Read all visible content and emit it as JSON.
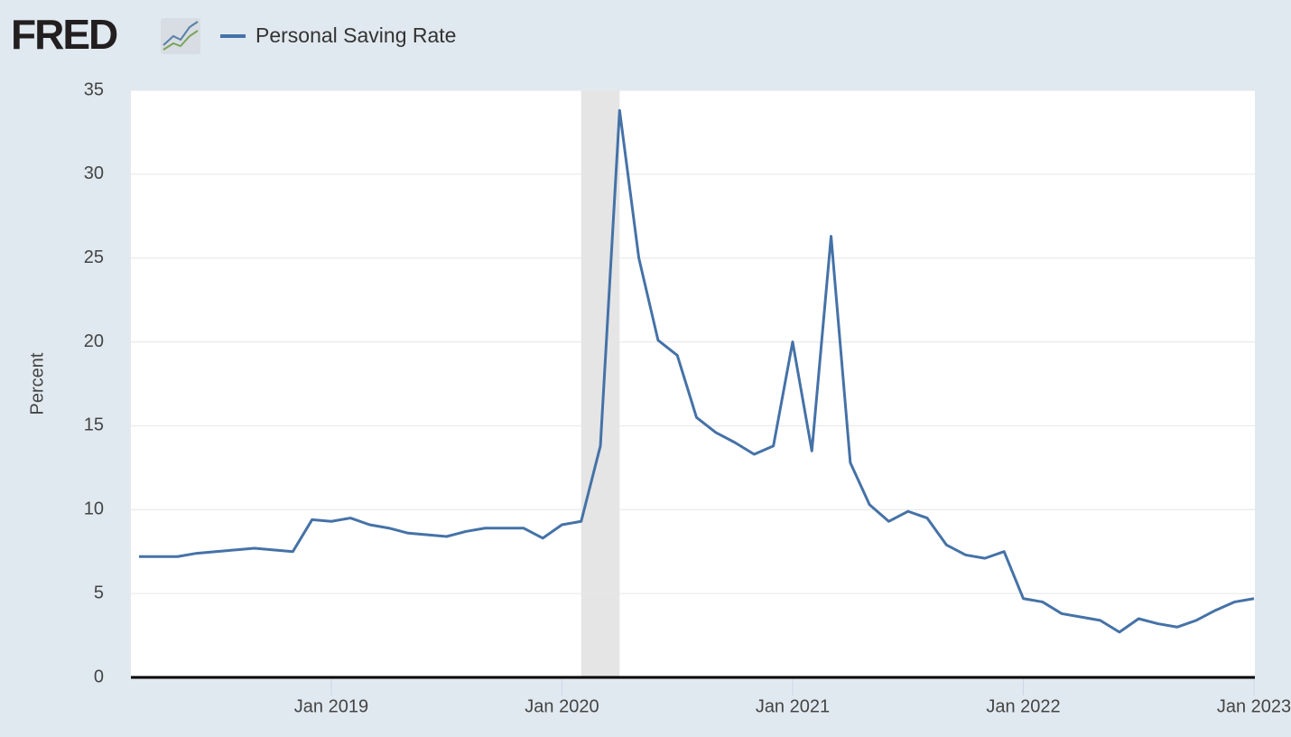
{
  "chart_data": {
    "type": "line",
    "logo": "FRED",
    "y_label": "Percent",
    "x": [
      "2018-03",
      "2018-04",
      "2018-05",
      "2018-06",
      "2018-07",
      "2018-08",
      "2018-09",
      "2018-10",
      "2018-11",
      "2018-12",
      "2019-01",
      "2019-02",
      "2019-03",
      "2019-04",
      "2019-05",
      "2019-06",
      "2019-07",
      "2019-08",
      "2019-09",
      "2019-10",
      "2019-11",
      "2019-12",
      "2020-01",
      "2020-02",
      "2020-03",
      "2020-04",
      "2020-05",
      "2020-06",
      "2020-07",
      "2020-08",
      "2020-09",
      "2020-10",
      "2020-11",
      "2020-12",
      "2021-01",
      "2021-02",
      "2021-03",
      "2021-04",
      "2021-05",
      "2021-06",
      "2021-07",
      "2021-08",
      "2021-09",
      "2021-10",
      "2021-11",
      "2021-12",
      "2022-01",
      "2022-02",
      "2022-03",
      "2022-04",
      "2022-05",
      "2022-06",
      "2022-07",
      "2022-08",
      "2022-09",
      "2022-10",
      "2022-11",
      "2022-12",
      "2023-01"
    ],
    "series": [
      {
        "name": "Personal Saving Rate",
        "color": "#4572a7",
        "values": [
          7.2,
          7.2,
          7.2,
          7.4,
          7.5,
          7.6,
          7.7,
          7.6,
          7.5,
          9.4,
          9.3,
          9.5,
          9.1,
          8.9,
          8.6,
          8.5,
          8.4,
          8.7,
          8.9,
          8.9,
          8.9,
          8.3,
          9.1,
          9.3,
          13.8,
          33.8,
          25.0,
          20.1,
          19.2,
          15.5,
          14.6,
          14.0,
          13.3,
          13.8,
          20.0,
          13.5,
          26.3,
          12.8,
          10.3,
          9.3,
          9.9,
          9.5,
          7.9,
          7.3,
          7.1,
          7.5,
          4.7,
          4.5,
          3.8,
          3.6,
          3.4,
          2.7,
          3.5,
          3.2,
          3.0,
          3.4,
          4.0,
          4.5,
          4.7
        ]
      }
    ],
    "shaded_periods": [
      [
        "2020-02",
        "2020-04"
      ]
    ],
    "shade_color": "#e5e5e5",
    "xlim": [
      "2018-03",
      "2023-01"
    ],
    "xticks": [
      {
        "value": "2019-01",
        "label": "Jan 2019"
      },
      {
        "value": "2020-01",
        "label": "Jan 2020"
      },
      {
        "value": "2021-01",
        "label": "Jan 2021"
      },
      {
        "value": "2022-01",
        "label": "Jan 2022"
      },
      {
        "value": "2023-01",
        "label": "Jan 2023"
      }
    ],
    "ylim": [
      0,
      35
    ],
    "yticks": [
      0,
      5,
      10,
      15,
      20,
      25,
      30,
      35
    ],
    "grid": true
  }
}
